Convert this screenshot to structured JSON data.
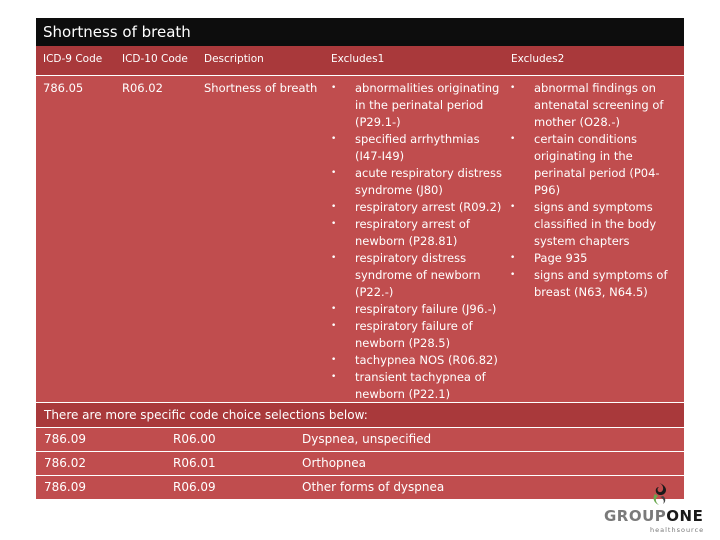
{
  "title": "Shortness of breath",
  "table": {
    "headers": [
      "ICD-9 Code",
      "ICD-10 Code",
      "Description",
      "Excludes1",
      "Excludes2"
    ],
    "row": {
      "icd9": "786.05",
      "icd10": "R06.02",
      "description": "Shortness of breath",
      "excludes1": [
        "abnormalities originating in the perinatal period (P29.1-)",
        "specified arrhythmias (I47-I49)",
        "acute respiratory distress syndrome (J80)",
        "respiratory arrest (R09.2)",
        "respiratory arrest of newborn (P28.81)",
        "respiratory distress syndrome of newborn (P22.-)",
        "respiratory failure (J96.-)",
        "respiratory failure of newborn (P28.5)",
        "tachypnea NOS (R06.82)",
        "transient tachypnea of newborn (P22.1)"
      ],
      "excludes2": [
        "abnormal findings on antenatal screening of mother (O28.-)",
        "certain conditions originating in the perinatal period (P04-P96)",
        "signs and symptoms classified in the body system chapters",
        "Page 935",
        "signs and symptoms of breast (N63, N64.5)"
      ]
    }
  },
  "note": "There are more specific code choice selections below:",
  "choices": [
    {
      "icd9": "786.09",
      "icd10": "R06.00",
      "description": "Dyspnea, unspecified"
    },
    {
      "icd9": "786.02",
      "icd10": "R06.01",
      "description": "Orthopnea"
    },
    {
      "icd9": "786.09",
      "icd10": "R06.09",
      "description": "Other forms of dyspnea"
    }
  ],
  "logo": {
    "word_part1": "GROUP",
    "word_part2": "ONE",
    "tagline": "healthsource",
    "icon": "group-one-swirl-icon"
  },
  "colors": {
    "title_bar": "#0d0d0d",
    "header_row": "#a9393b",
    "body_row": "#c04d4e",
    "white": "#ffffff"
  }
}
